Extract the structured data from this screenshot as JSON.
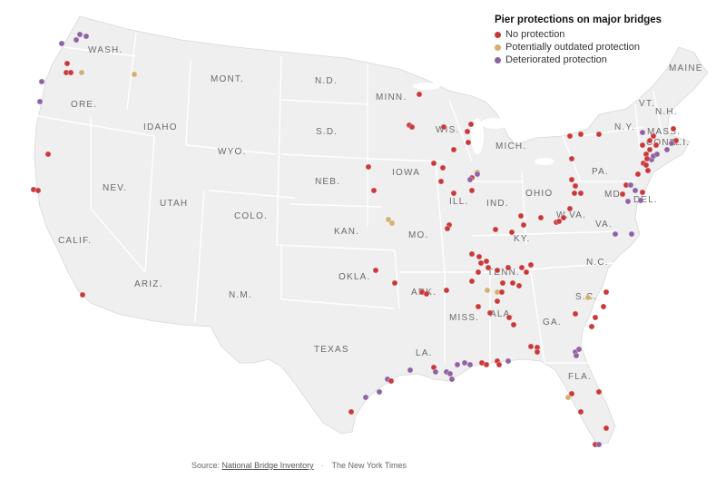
{
  "legend": {
    "title": "Pier protections on major bridges",
    "items": [
      {
        "label": "No protection",
        "color": "#c8393b"
      },
      {
        "label": "Potentially outdated protection",
        "color": "#d2b06f"
      },
      {
        "label": "Deteriorated protection",
        "color": "#8e62a3"
      }
    ]
  },
  "footer": {
    "source_prefix": "Source:",
    "source_link": "National Bridge Inventory",
    "separator": "·",
    "credit": "The New York Times"
  },
  "map": {
    "land_color": "#efefef",
    "border_color": "#ffffff",
    "states": [
      {
        "name": "WASH."
      },
      {
        "name": "ORE."
      },
      {
        "name": "CALIF."
      },
      {
        "name": "NEV."
      },
      {
        "name": "IDAHO"
      },
      {
        "name": "MONT."
      },
      {
        "name": "WYO."
      },
      {
        "name": "UTAH"
      },
      {
        "name": "ARIZ."
      },
      {
        "name": "COLO."
      },
      {
        "name": "N.M."
      },
      {
        "name": "N.D."
      },
      {
        "name": "S.D."
      },
      {
        "name": "NEB."
      },
      {
        "name": "KAN."
      },
      {
        "name": "OKLA."
      },
      {
        "name": "TEXAS"
      },
      {
        "name": "MINN."
      },
      {
        "name": "IOWA"
      },
      {
        "name": "MO."
      },
      {
        "name": "ARK."
      },
      {
        "name": "LA."
      },
      {
        "name": "WIS."
      },
      {
        "name": "ILL."
      },
      {
        "name": "MICH."
      },
      {
        "name": "IND."
      },
      {
        "name": "OHIO"
      },
      {
        "name": "KY."
      },
      {
        "name": "TENN."
      },
      {
        "name": "MISS."
      },
      {
        "name": "ALA."
      },
      {
        "name": "GA."
      },
      {
        "name": "FLA."
      },
      {
        "name": "S.C."
      },
      {
        "name": "N.C."
      },
      {
        "name": "VA."
      },
      {
        "name": "W.VA."
      },
      {
        "name": "PA."
      },
      {
        "name": "N.Y."
      },
      {
        "name": "VT."
      },
      {
        "name": "N.H."
      },
      {
        "name": "MAINE"
      },
      {
        "name": "MASS."
      },
      {
        "name": "CONN."
      },
      {
        "name": "R.I."
      },
      {
        "name": "MD."
      },
      {
        "name": "DEL."
      }
    ]
  }
}
